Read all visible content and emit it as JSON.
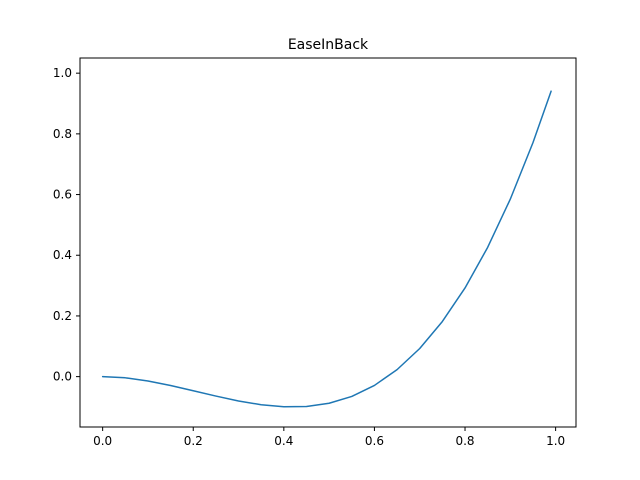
{
  "chart_data": {
    "type": "line",
    "title": "EaseInBack",
    "xlabel": "",
    "ylabel": "",
    "xlim": [
      -0.05,
      1.045
    ],
    "ylim": [
      -0.166,
      1.05
    ],
    "x_ticks": [
      "0.0",
      "0.2",
      "0.4",
      "0.6",
      "0.8",
      "1.0"
    ],
    "y_ticks": [
      "0.0",
      "0.2",
      "0.4",
      "0.6",
      "0.8",
      "1.0"
    ],
    "grid": false,
    "legend": "none",
    "series": [
      {
        "color": "#1f77b4",
        "x": [
          0.0,
          0.05,
          0.1,
          0.15,
          0.2,
          0.25,
          0.3,
          0.35,
          0.4,
          0.45,
          0.5,
          0.55,
          0.6,
          0.65,
          0.7,
          0.75,
          0.8,
          0.85,
          0.9,
          0.95,
          0.99
        ],
        "y": [
          0.0,
          -0.0039,
          -0.0143,
          -0.0292,
          -0.0465,
          -0.0641,
          -0.0802,
          -0.0926,
          -0.0994,
          -0.0985,
          -0.0877,
          -0.0652,
          -0.029,
          0.0231,
          0.0927,
          0.1818,
          0.2922,
          0.426,
          0.585,
          0.7712,
          0.9406
        ]
      }
    ]
  }
}
